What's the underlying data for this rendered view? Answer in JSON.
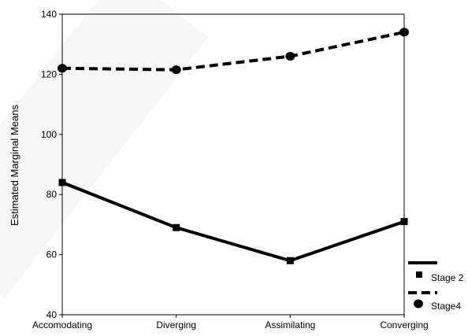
{
  "chart_data": {
    "type": "line",
    "title": "",
    "xlabel": "",
    "ylabel": "Estimated Marginal Means",
    "categories": [
      "Accomodating",
      "Diverging",
      "Assimilating",
      "Converging"
    ],
    "ylim": [
      40,
      140
    ],
    "yticks": [
      40,
      60,
      80,
      100,
      120,
      140
    ],
    "grid": false,
    "legend_position": "bottom-right",
    "series": [
      {
        "name": "Stage 2",
        "values": [
          84,
          69,
          58,
          71
        ],
        "line_style": "solid",
        "marker": "square",
        "color": "#000000"
      },
      {
        "name": "Stage4",
        "values": [
          122,
          121.5,
          126,
          134
        ],
        "line_style": "dashed",
        "marker": "circle",
        "color": "#000000"
      }
    ]
  }
}
